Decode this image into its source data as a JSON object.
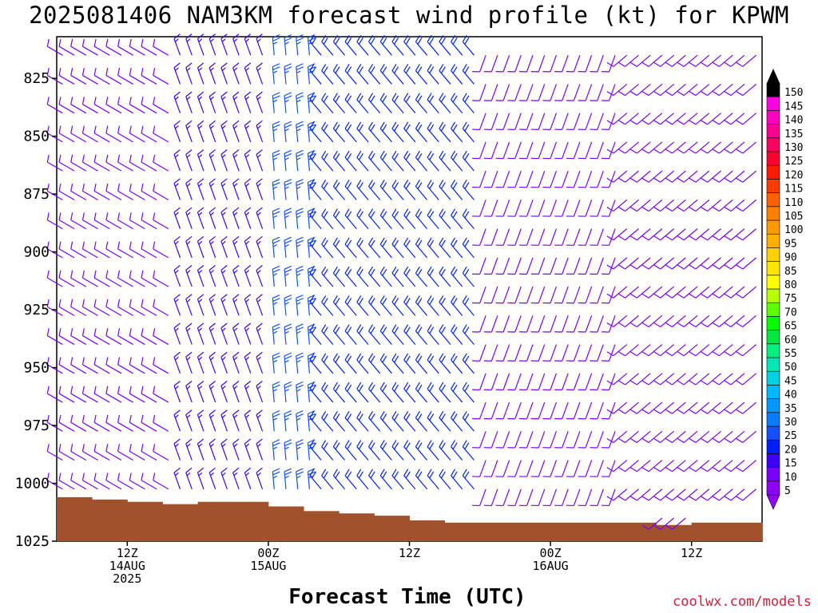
{
  "chart_data": {
    "type": "wind_barb_profile",
    "title": "2025081406 NAM3KM forecast wind profile (kt) for KPWM",
    "xlabel": "Forecast Time (UTC)",
    "ylabel": "",
    "credit": "coolwx.com/models",
    "y_axis": {
      "ticks": [
        825,
        850,
        875,
        900,
        925,
        950,
        975,
        1000,
        1025
      ],
      "ylim": [
        1025,
        807
      ]
    },
    "x_axis": {
      "unit_hours_from_init": true,
      "xlim": [
        0,
        60
      ],
      "ticks": [
        {
          "hour": 6,
          "lines": [
            "12Z",
            "14AUG",
            "2025"
          ]
        },
        {
          "hour": 18,
          "lines": [
            "00Z",
            "15AUG"
          ]
        },
        {
          "hour": 30,
          "lines": [
            "12Z"
          ]
        },
        {
          "hour": 42,
          "lines": [
            "00Z",
            "16AUG"
          ]
        },
        {
          "hour": 54,
          "lines": [
            "12Z"
          ]
        }
      ]
    },
    "colorbar": {
      "values": [
        5,
        10,
        15,
        20,
        25,
        30,
        35,
        40,
        45,
        50,
        55,
        60,
        65,
        70,
        75,
        80,
        85,
        90,
        95,
        100,
        105,
        110,
        115,
        120,
        125,
        130,
        135,
        140,
        145,
        150
      ],
      "colors": [
        "#8f00ff",
        "#7a00ff",
        "#3c00ff",
        "#0020ff",
        "#1450ff",
        "#0a7cff",
        "#0099ff",
        "#00b8ff",
        "#00d0e0",
        "#00e6b4",
        "#00f080",
        "#00e640",
        "#00ff00",
        "#5cff00",
        "#b8ff00",
        "#ffff00",
        "#ffe600",
        "#ffd000",
        "#ffb000",
        "#ff9a00",
        "#ff8000",
        "#ff6000",
        "#ff3c00",
        "#ff1c00",
        "#ff0030",
        "#ff0060",
        "#ff0090",
        "#ff00c0",
        "#ff00e0",
        "#000000"
      ]
    },
    "surface_pressure": {
      "hours": [
        0,
        3,
        6,
        9,
        12,
        15,
        18,
        21,
        24,
        27,
        30,
        33,
        36,
        39,
        42,
        45,
        48,
        51,
        54,
        57,
        60
      ],
      "values": [
        1006,
        1007,
        1008,
        1009,
        1008,
        1008,
        1010,
        1012,
        1013,
        1014,
        1016,
        1017,
        1017,
        1017,
        1017,
        1017,
        1017,
        1018,
        1017,
        1017,
        1017
      ]
    },
    "wind_regimes": [
      {
        "hours": [
          0,
          10
        ],
        "direction_deg": 300,
        "speed_kt": 10
      },
      {
        "hours": [
          10,
          18
        ],
        "direction_deg": 340,
        "speed_kt": 15
      },
      {
        "hours": [
          18,
          22
        ],
        "direction_deg": 355,
        "speed_kt": 25
      },
      {
        "hours": [
          22,
          36
        ],
        "direction_deg": 320,
        "speed_kt": 20
      },
      {
        "hours": [
          36,
          48
        ],
        "direction_deg": 200,
        "speed_kt": 10
      },
      {
        "hours": [
          48,
          60
        ],
        "direction_deg": 230,
        "speed_kt": 10
      }
    ]
  }
}
